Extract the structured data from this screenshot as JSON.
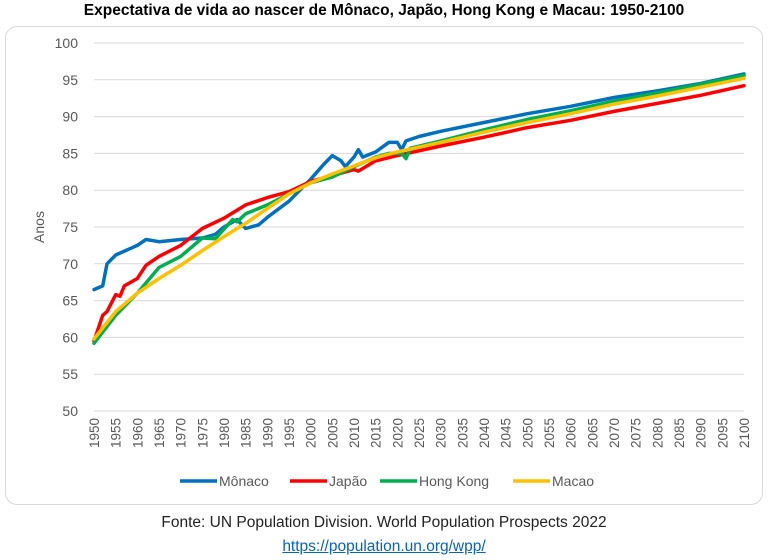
{
  "chart_data": {
    "type": "line",
    "title": "Expectativa de vida ao nascer de Mônaco, Japão, Hong Kong e Macau: 1950-2100",
    "xlabel": "",
    "ylabel": "Anos",
    "xlim": [
      1950,
      2100
    ],
    "ylim": [
      50,
      100
    ],
    "x_ticks": [
      1950,
      1955,
      1960,
      1965,
      1970,
      1975,
      1980,
      1985,
      1990,
      1995,
      2000,
      2005,
      2010,
      2015,
      2020,
      2025,
      2030,
      2035,
      2040,
      2045,
      2050,
      2055,
      2060,
      2065,
      2070,
      2075,
      2080,
      2085,
      2090,
      2095,
      2100
    ],
    "y_ticks": [
      50,
      55,
      60,
      65,
      70,
      75,
      80,
      85,
      90,
      95,
      100
    ],
    "grid": "horizontal",
    "legend": "bottom",
    "series": [
      {
        "name": "Mônaco",
        "color": "#0070c0",
        "points": [
          [
            1950,
            66.5
          ],
          [
            1952,
            67
          ],
          [
            1953,
            70
          ],
          [
            1955,
            71.2
          ],
          [
            1960,
            72.5
          ],
          [
            1962,
            73.3
          ],
          [
            1965,
            73.0
          ],
          [
            1970,
            73.3
          ],
          [
            1975,
            73.5
          ],
          [
            1978,
            74
          ],
          [
            1980,
            75
          ],
          [
            1983,
            76
          ],
          [
            1985,
            74.8
          ],
          [
            1988,
            75.3
          ],
          [
            1990,
            76.3
          ],
          [
            1995,
            78.5
          ],
          [
            2000,
            81.5
          ],
          [
            2003,
            83.5
          ],
          [
            2005,
            84.7
          ],
          [
            2007,
            84
          ],
          [
            2008,
            83.2
          ],
          [
            2010,
            84.5
          ],
          [
            2011,
            85.5
          ],
          [
            2012,
            84.5
          ],
          [
            2015,
            85.2
          ],
          [
            2018,
            86.5
          ],
          [
            2020,
            86.5
          ],
          [
            2021,
            85.5
          ],
          [
            2022,
            86.7
          ],
          [
            2025,
            87.3
          ],
          [
            2030,
            88
          ],
          [
            2040,
            89.2
          ],
          [
            2050,
            90.4
          ],
          [
            2060,
            91.4
          ],
          [
            2070,
            92.6
          ],
          [
            2080,
            93.5
          ],
          [
            2090,
            94.5
          ],
          [
            2100,
            95.8
          ]
        ]
      },
      {
        "name": "Japão",
        "color": "#ff0000",
        "points": [
          [
            1950,
            59.5
          ],
          [
            1952,
            63
          ],
          [
            1953,
            63.5
          ],
          [
            1955,
            65.8
          ],
          [
            1956,
            65.6
          ],
          [
            1957,
            67
          ],
          [
            1960,
            68
          ],
          [
            1962,
            69.8
          ],
          [
            1965,
            71
          ],
          [
            1970,
            72.5
          ],
          [
            1975,
            74.8
          ],
          [
            1980,
            76.2
          ],
          [
            1985,
            78
          ],
          [
            1990,
            79
          ],
          [
            1995,
            79.8
          ],
          [
            2000,
            81.2
          ],
          [
            2005,
            82
          ],
          [
            2010,
            82.8
          ],
          [
            2011,
            82.6
          ],
          [
            2015,
            84
          ],
          [
            2020,
            84.7
          ],
          [
            2030,
            86
          ],
          [
            2040,
            87.2
          ],
          [
            2050,
            88.5
          ],
          [
            2060,
            89.5
          ],
          [
            2070,
            90.7
          ],
          [
            2080,
            91.8
          ],
          [
            2090,
            92.9
          ],
          [
            2100,
            94.2
          ]
        ]
      },
      {
        "name": "Hong Kong",
        "color": "#00b050",
        "points": [
          [
            1950,
            59.2
          ],
          [
            1955,
            63
          ],
          [
            1960,
            66
          ],
          [
            1965,
            69.5
          ],
          [
            1970,
            71
          ],
          [
            1975,
            73.5
          ],
          [
            1978,
            73.4
          ],
          [
            1980,
            74.7
          ],
          [
            1982,
            76
          ],
          [
            1983,
            75.7
          ],
          [
            1985,
            76.8
          ],
          [
            1990,
            78
          ],
          [
            1995,
            79.5
          ],
          [
            2000,
            81
          ],
          [
            2005,
            81.8
          ],
          [
            2010,
            83.2
          ],
          [
            2015,
            84.5
          ],
          [
            2018,
            85
          ],
          [
            2021,
            85
          ],
          [
            2022,
            84.3
          ],
          [
            2023,
            85.7
          ],
          [
            2030,
            86.7
          ],
          [
            2040,
            88.2
          ],
          [
            2050,
            89.6
          ],
          [
            2060,
            90.8
          ],
          [
            2070,
            92.1
          ],
          [
            2080,
            93.2
          ],
          [
            2090,
            94.4
          ],
          [
            2100,
            95.6
          ]
        ]
      },
      {
        "name": "Macao",
        "color": "#ffc000",
        "points": [
          [
            1950,
            59.8
          ],
          [
            1955,
            63.5
          ],
          [
            1960,
            66
          ],
          [
            1965,
            68
          ],
          [
            1970,
            69.8
          ],
          [
            1975,
            71.8
          ],
          [
            1980,
            73.7
          ],
          [
            1985,
            75.5
          ],
          [
            1990,
            77.5
          ],
          [
            1995,
            79.5
          ],
          [
            2000,
            81
          ],
          [
            2005,
            82.2
          ],
          [
            2010,
            83.3
          ],
          [
            2015,
            84.4
          ],
          [
            2020,
            85.2
          ],
          [
            2030,
            86.5
          ],
          [
            2040,
            87.9
          ],
          [
            2050,
            89.2
          ],
          [
            2060,
            90.4
          ],
          [
            2070,
            91.7
          ],
          [
            2080,
            92.8
          ],
          [
            2090,
            94
          ],
          [
            2100,
            95.2
          ]
        ]
      }
    ]
  },
  "source": {
    "text": "Fonte: UN Population Division. World Population Prospects 2022",
    "link": "https://population.un.org/wpp/"
  }
}
